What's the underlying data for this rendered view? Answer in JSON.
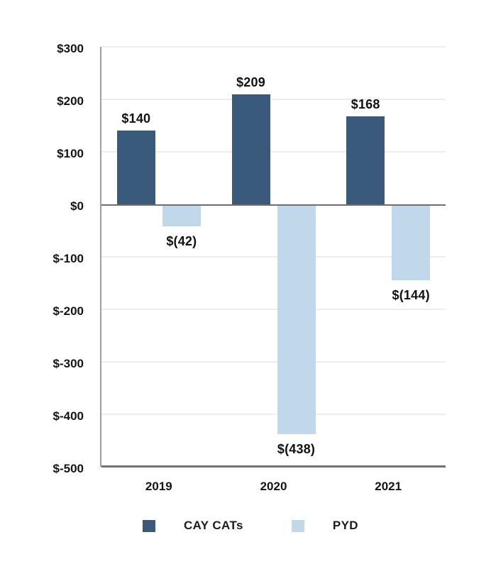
{
  "chart_data": {
    "type": "bar",
    "title": "",
    "xlabel": "",
    "ylabel": "",
    "categories": [
      "2019",
      "2020",
      "2021"
    ],
    "series": [
      {
        "name": "CAY CATs",
        "color": "#3a5a7c",
        "values": [
          140,
          209,
          168
        ],
        "data_labels": [
          "$140",
          "$209",
          "$168"
        ]
      },
      {
        "name": "PYD",
        "color": "#c1d8ea",
        "values": [
          -42,
          -438,
          -144
        ],
        "data_labels": [
          "$(42)",
          "$(438)",
          "$(144)"
        ]
      }
    ],
    "y_ticks": [
      {
        "value": 300,
        "label": "$300"
      },
      {
        "value": 200,
        "label": "$200"
      },
      {
        "value": 100,
        "label": "$100"
      },
      {
        "value": 0,
        "label": "$0"
      },
      {
        "value": -100,
        "label": "$-100"
      },
      {
        "value": -200,
        "label": "$-200"
      },
      {
        "value": -300,
        "label": "$-300"
      },
      {
        "value": -400,
        "label": "$-400"
      },
      {
        "value": -500,
        "label": "$-500"
      }
    ],
    "ylim": [
      -500,
      300
    ],
    "grid": true,
    "legend_position": "bottom",
    "colors": {
      "grid": "#ededed",
      "zero_line": "#6d6d6d",
      "axis_line": "#9e9e9e",
      "text": "#141414",
      "background": "#ffffff"
    }
  }
}
